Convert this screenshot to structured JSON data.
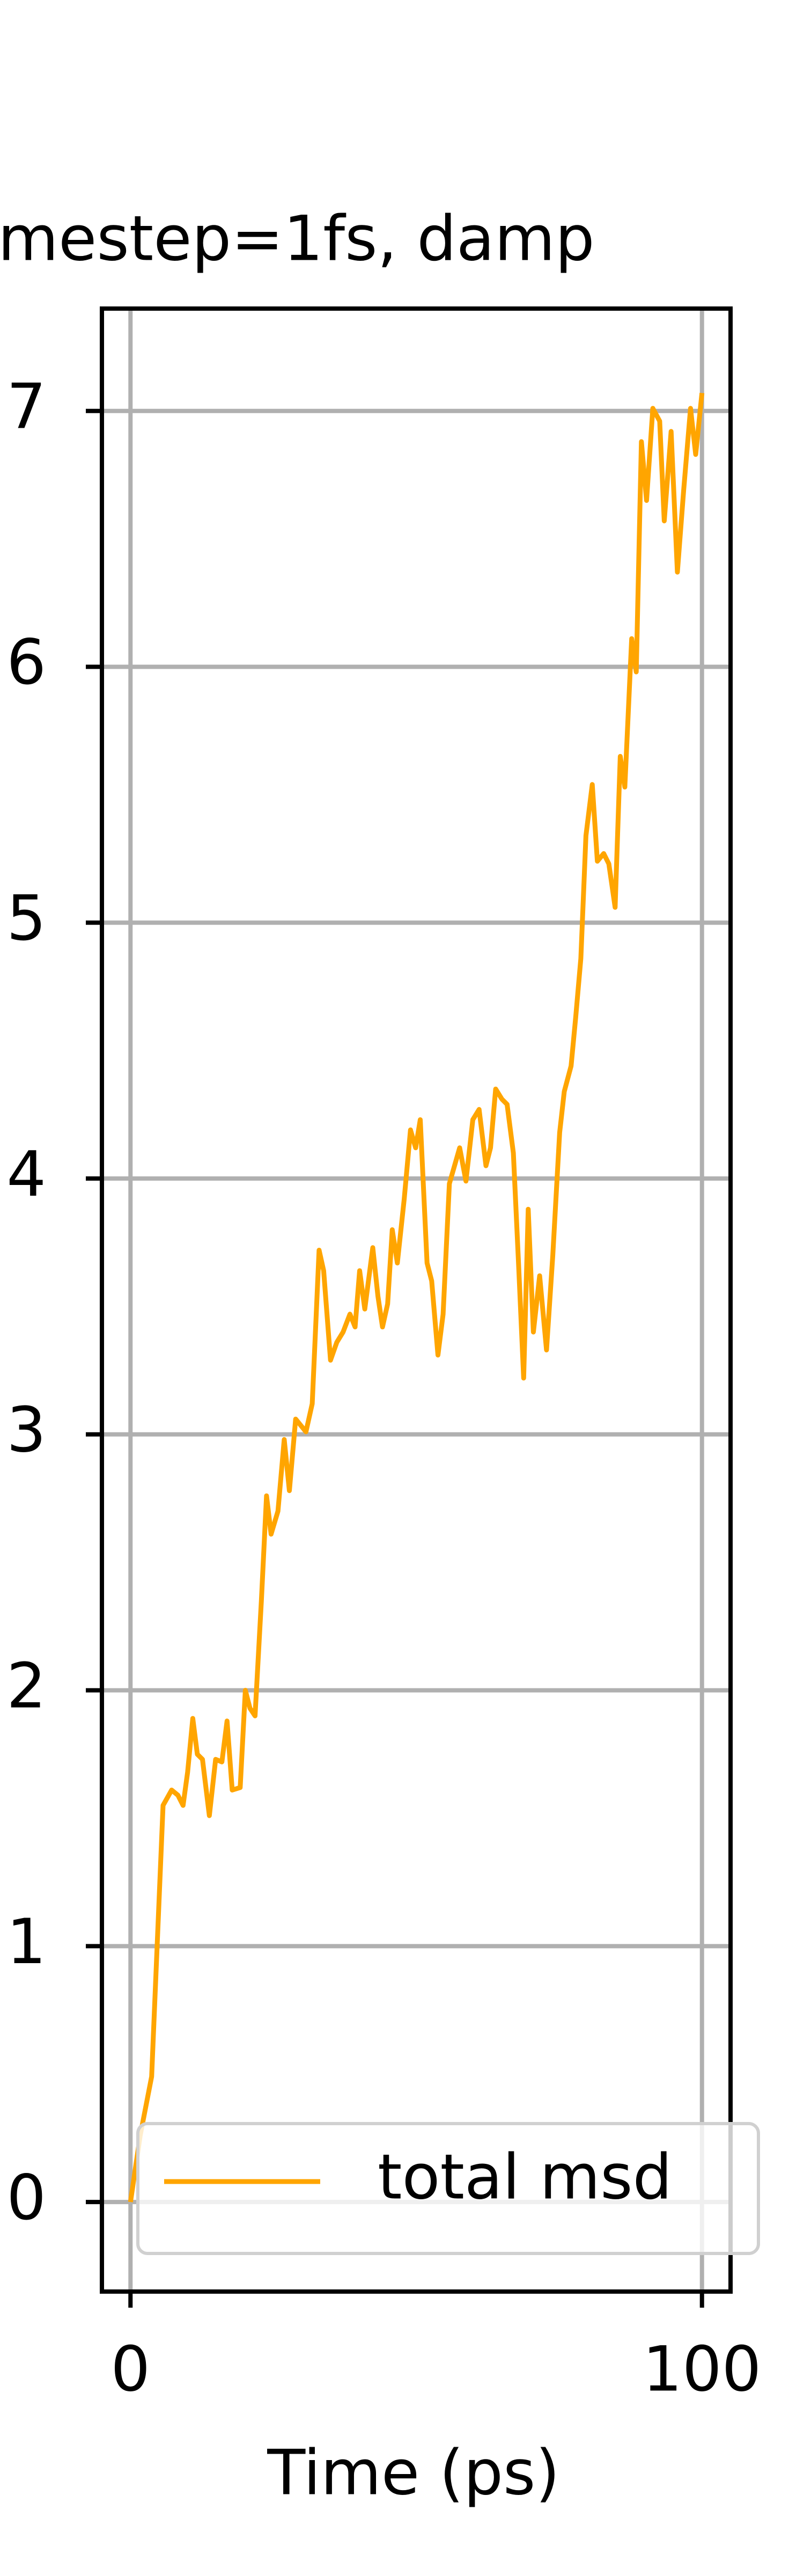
{
  "chart_data": {
    "type": "line",
    "title": "mestep=1fs, damp",
    "xlabel": "Time (ps)",
    "x": [
      0,
      1.7,
      3.7,
      5.7,
      7.2,
      8.3,
      9.2,
      10.0,
      10.9,
      11.7,
      12.6,
      13.8,
      14.9,
      16.0,
      16.9,
      17.8,
      19.2,
      20.1,
      20.9,
      21.8,
      22.9,
      23.8,
      24.6,
      25.8,
      26.9,
      27.8,
      28.9,
      30.7,
      31.8,
      33.0,
      33.8,
      35.0,
      36.1,
      37.2,
      38.4,
      39.3,
      40.1,
      41.0,
      42.4,
      43.3,
      44.1,
      45.0,
      45.8,
      46.7,
      47.9,
      49.0,
      49.9,
      50.7,
      51.9,
      52.7,
      53.8,
      54.7,
      55.8,
      57.6,
      58.7,
      59.9,
      61.0,
      62.2,
      63.0,
      63.9,
      65.0,
      65.9,
      67.0,
      67.9,
      68.8,
      69.6,
      70.5,
      71.6,
      72.8,
      73.9,
      75.1,
      75.9,
      77.1,
      77.9,
      78.8,
      79.7,
      80.8,
      81.7,
      82.8,
      83.7,
      84.8,
      85.7,
      86.5,
      87.7,
      88.5,
      89.4,
      90.3,
      91.4,
      92.6,
      93.4,
      94.6,
      95.7,
      96.8,
      98.0,
      98.9,
      100
    ],
    "series": [
      {
        "name": "total msd",
        "color": "#ffa500",
        "values": [
          0,
          0.26,
          0.49,
          1.55,
          1.61,
          1.59,
          1.55,
          1.68,
          1.89,
          1.75,
          1.73,
          1.51,
          1.73,
          1.72,
          1.88,
          1.61,
          1.62,
          2.0,
          1.93,
          1.9,
          2.35,
          2.76,
          2.61,
          2.7,
          2.98,
          2.78,
          3.06,
          3.01,
          3.12,
          3.72,
          3.64,
          3.29,
          3.36,
          3.4,
          3.47,
          3.42,
          3.64,
          3.49,
          3.73,
          3.54,
          3.42,
          3.51,
          3.8,
          3.67,
          3.92,
          4.19,
          4.12,
          4.23,
          3.67,
          3.6,
          3.31,
          3.47,
          3.98,
          4.12,
          3.99,
          4.23,
          4.27,
          4.05,
          4.12,
          4.35,
          4.31,
          4.29,
          4.1,
          3.67,
          3.22,
          3.88,
          3.4,
          3.62,
          3.33,
          3.7,
          4.18,
          4.34,
          4.44,
          4.63,
          4.86,
          5.34,
          5.54,
          5.24,
          5.27,
          5.23,
          5.06,
          5.65,
          5.53,
          6.11,
          5.98,
          6.88,
          6.65,
          7.01,
          6.96,
          6.57,
          6.92,
          6.37,
          6.69,
          7.01,
          6.83,
          7.07
        ]
      }
    ],
    "xlim": [
      -5,
      105
    ],
    "ylim": [
      -0.35,
      7.4
    ],
    "xticks": [
      0,
      100
    ],
    "yticks": [
      0,
      1,
      2,
      3,
      4,
      5,
      6,
      7
    ],
    "grid": true,
    "legend": "lower right"
  }
}
